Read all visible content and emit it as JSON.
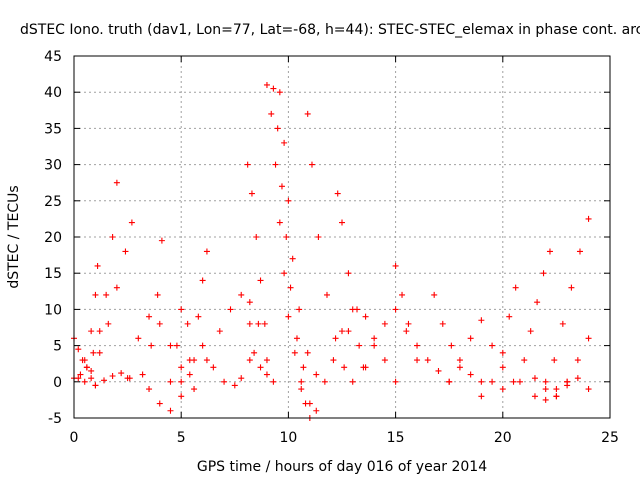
{
  "chart_data": {
    "type": "scatter",
    "title": "dSTEC Iono. truth (dav1, Lon=77, Lat=-68, h=44): STEC-STEC_elemax in phase cont. arc",
    "xlabel": "GPS time / hours of day 016 of year 2014",
    "ylabel": "dSTEC  / TECUs",
    "xlim": [
      0,
      25
    ],
    "ylim": [
      -5,
      45
    ],
    "x_ticks": [
      0,
      5,
      10,
      15,
      20,
      25
    ],
    "y_ticks": [
      -5,
      0,
      5,
      10,
      15,
      20,
      25,
      30,
      35,
      40,
      45
    ],
    "grid": true,
    "marker": "+",
    "color": "#ff0000",
    "series": [
      {
        "x": [
          0.0,
          0.3,
          0.6,
          0.9,
          1.2,
          1.5,
          1.8,
          2.0
        ],
        "y": [
          0.5,
          1.0,
          2.0,
          4.0,
          7.0,
          12.0,
          20.0,
          27.5
        ]
      },
      {
        "x": [
          0.5,
          0.8,
          1.2,
          1.6,
          2.0,
          2.4,
          2.7
        ],
        "y": [
          0.0,
          1.5,
          4.0,
          8.0,
          13.0,
          18.0,
          22.0
        ]
      },
      {
        "x": [
          0.0,
          0.2,
          0.4,
          0.6,
          0.8,
          1.0
        ],
        "y": [
          6.0,
          4.5,
          3.0,
          2.0,
          0.5,
          -0.5
        ]
      },
      {
        "x": [
          0.2,
          0.5,
          0.8,
          1.0,
          1.1
        ],
        "y": [
          0.5,
          3.0,
          7.0,
          12.0,
          16.0
        ]
      },
      {
        "x": [
          1.0,
          1.4,
          1.8,
          2.2,
          2.5
        ],
        "y": [
          -0.5,
          0.2,
          0.8,
          1.2,
          0.5
        ]
      },
      {
        "x": [
          2.6,
          3.0,
          3.5,
          4.0,
          4.5,
          5.0
        ],
        "y": [
          0.5,
          6.0,
          9.0,
          8.0,
          5.0,
          2.0
        ]
      },
      {
        "x": [
          3.2,
          3.6,
          3.9,
          4.1
        ],
        "y": [
          1.0,
          5.0,
          12.0,
          19.5
        ]
      },
      {
        "x": [
          3.5,
          4.0,
          4.5,
          5.0,
          5.4
        ],
        "y": [
          -1.0,
          -3.0,
          -4.0,
          -2.0,
          1.0
        ]
      },
      {
        "x": [
          4.5,
          4.8,
          5.0,
          5.3,
          5.6
        ],
        "y": [
          0.0,
          5.0,
          10.0,
          8.0,
          3.0
        ]
      },
      {
        "x": [
          5.0,
          5.4,
          5.8,
          6.0,
          6.2
        ],
        "y": [
          0.0,
          3.0,
          9.0,
          14.0,
          18.0
        ]
      },
      {
        "x": [
          6.0,
          6.5,
          7.0,
          7.5,
          7.8,
          8.2,
          8.6
        ],
        "y": [
          5.0,
          2.0,
          0.0,
          -0.5,
          0.5,
          3.0,
          8.0
        ]
      },
      {
        "x": [
          5.6,
          6.2,
          6.8,
          7.3,
          7.8,
          8.2
        ],
        "y": [
          -1.0,
          3.0,
          7.0,
          10.0,
          12.0,
          11.0
        ]
      },
      {
        "x": [
          8.1,
          8.3,
          8.5,
          8.7,
          8.9,
          9.0
        ],
        "y": [
          30.0,
          26.0,
          20.0,
          14.0,
          8.0,
          3.0
        ]
      },
      {
        "x": [
          8.2,
          8.4,
          8.7,
          9.0,
          9.3
        ],
        "y": [
          8.0,
          4.0,
          2.0,
          1.0,
          0.0
        ]
      },
      {
        "x": [
          9.0,
          9.2,
          9.4,
          9.6,
          9.8,
          10.0,
          10.3,
          10.6,
          11.0
        ],
        "y": [
          41.0,
          37.0,
          30.0,
          22.0,
          15.0,
          9.0,
          4.0,
          0.0,
          -3.0
        ]
      },
      {
        "x": [
          9.3,
          9.5,
          9.7,
          9.9,
          10.1,
          10.4,
          10.7
        ],
        "y": [
          40.5,
          35.0,
          27.0,
          20.0,
          13.0,
          6.0,
          2.0
        ]
      },
      {
        "x": [
          9.6,
          9.8,
          10.0,
          10.2,
          10.5,
          10.9,
          11.3
        ],
        "y": [
          40.0,
          33.0,
          25.0,
          17.0,
          10.0,
          4.0,
          1.0
        ]
      },
      {
        "x": [
          10.6,
          10.8,
          11.0,
          11.3,
          11.7,
          12.1,
          12.5
        ],
        "y": [
          -1.0,
          -3.0,
          -5.0,
          -4.0,
          0.0,
          3.0,
          7.0
        ]
      },
      {
        "x": [
          10.9,
          11.1,
          11.4,
          11.8,
          12.2,
          12.6
        ],
        "y": [
          37.0,
          30.0,
          20.0,
          12.0,
          6.0,
          2.0
        ]
      },
      {
        "x": [
          12.3,
          12.5,
          12.8,
          13.0,
          13.3,
          13.6
        ],
        "y": [
          26.0,
          22.0,
          15.0,
          10.0,
          5.0,
          2.0
        ]
      },
      {
        "x": [
          12.8,
          13.2,
          13.6,
          14.0,
          14.5,
          15.0
        ],
        "y": [
          7.0,
          10.0,
          9.0,
          6.0,
          3.0,
          0.0
        ]
      },
      {
        "x": [
          13.0,
          13.5,
          14.0,
          14.5,
          15.0,
          15.5,
          16.0
        ],
        "y": [
          0.0,
          2.0,
          5.0,
          8.0,
          10.0,
          7.0,
          3.0
        ]
      },
      {
        "x": [
          15.0,
          15.3,
          15.6,
          16.0,
          16.5,
          17.0,
          17.5
        ],
        "y": [
          16.0,
          12.0,
          8.0,
          5.0,
          3.0,
          1.5,
          0.0
        ]
      },
      {
        "x": [
          16.8,
          17.2,
          17.6,
          18.0,
          18.5,
          19.0
        ],
        "y": [
          12.0,
          8.0,
          5.0,
          3.0,
          1.0,
          0.0
        ]
      },
      {
        "x": [
          17.5,
          18.0,
          18.5,
          19.0,
          19.5,
          20.0
        ],
        "y": [
          0.0,
          2.0,
          6.0,
          8.5,
          5.0,
          2.0
        ]
      },
      {
        "x": [
          19.0,
          19.5,
          20.0,
          20.3,
          20.6
        ],
        "y": [
          -2.0,
          0.0,
          4.0,
          9.0,
          13.0
        ]
      },
      {
        "x": [
          20.5,
          21.0,
          21.3,
          21.6,
          21.9,
          22.2
        ],
        "y": [
          0.0,
          3.0,
          7.0,
          11.0,
          15.0,
          18.0
        ]
      },
      {
        "x": [
          20.0,
          20.8,
          21.5,
          22.0,
          22.5,
          23.0
        ],
        "y": [
          -1.0,
          0.0,
          0.5,
          -1.0,
          -2.0,
          -0.5
        ]
      },
      {
        "x": [
          22.0,
          22.4,
          22.8,
          23.2,
          23.6,
          24.0
        ],
        "y": [
          0.0,
          3.0,
          8.0,
          13.0,
          18.0,
          22.5
        ]
      },
      {
        "x": [
          22.5,
          23.0,
          23.5,
          24.0
        ],
        "y": [
          -2.0,
          0.0,
          3.0,
          6.0
        ]
      },
      {
        "x": [
          21.5,
          22.0,
          22.5,
          23.0,
          23.5,
          24.0
        ],
        "y": [
          -2.0,
          -2.5,
          -1.0,
          0.0,
          0.5,
          -1.0
        ]
      }
    ]
  }
}
